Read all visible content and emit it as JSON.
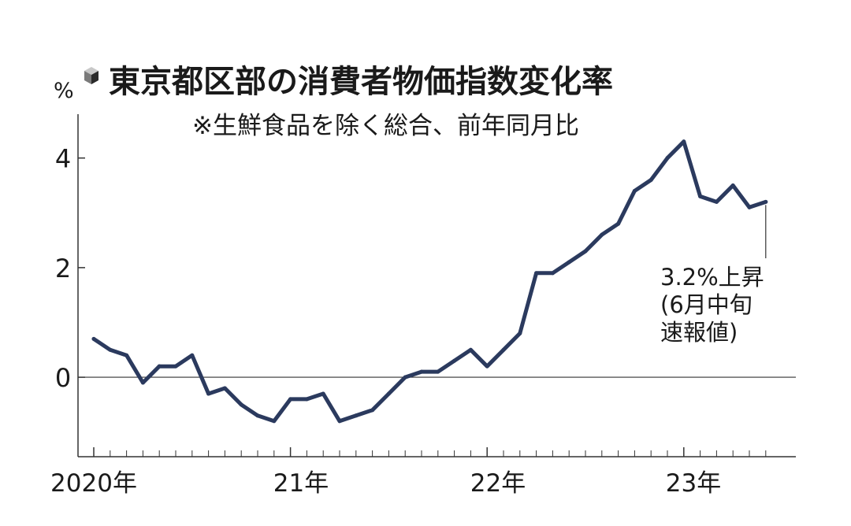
{
  "chart_data": {
    "type": "line",
    "title": "東京都区部の消費者物価指数変化率",
    "subtitle": "※生鮮食品を除く総合、前年同月比",
    "ylabel": "%",
    "ylim": [
      -1.45,
      4.8
    ],
    "yticks": [
      "4",
      "2",
      "0"
    ],
    "ytick_values": [
      4,
      2,
      0
    ],
    "xtick_labels": [
      "2020年",
      "21年",
      "22年",
      "23年"
    ],
    "year_start_month_index": [
      0,
      12,
      24,
      36
    ],
    "grid": false,
    "series": [
      {
        "color": "#2b3a5e",
        "x": [
          "2020-01",
          "2020-02",
          "2020-03",
          "2020-04",
          "2020-05",
          "2020-06",
          "2020-07",
          "2020-08",
          "2020-09",
          "2020-10",
          "2020-11",
          "2020-12",
          "2021-01",
          "2021-02",
          "2021-03",
          "2021-04",
          "2021-05",
          "2021-06",
          "2021-07",
          "2021-08",
          "2021-09",
          "2021-10",
          "2021-11",
          "2021-12",
          "2022-01",
          "2022-02",
          "2022-03",
          "2022-04",
          "2022-05",
          "2022-06",
          "2022-07",
          "2022-08",
          "2022-09",
          "2022-10",
          "2022-11",
          "2022-12",
          "2023-01",
          "2023-02",
          "2023-03",
          "2023-04",
          "2023-05",
          "2023-06"
        ],
        "values": [
          0.7,
          0.5,
          0.4,
          -0.1,
          0.2,
          0.2,
          0.4,
          -0.3,
          -0.2,
          -0.5,
          -0.7,
          -0.8,
          -0.4,
          -0.4,
          -0.3,
          -0.8,
          -0.7,
          -0.6,
          -0.3,
          0.0,
          0.1,
          0.1,
          0.3,
          0.5,
          0.2,
          0.5,
          0.8,
          1.9,
          1.9,
          2.1,
          2.3,
          2.6,
          2.8,
          3.4,
          3.6,
          4.0,
          4.3,
          3.3,
          3.2,
          3.5,
          3.1,
          3.2
        ]
      }
    ],
    "annotation": {
      "lines": [
        "3.2%上昇",
        "(6月中旬",
        "速報値)"
      ],
      "point_index": 41
    }
  }
}
